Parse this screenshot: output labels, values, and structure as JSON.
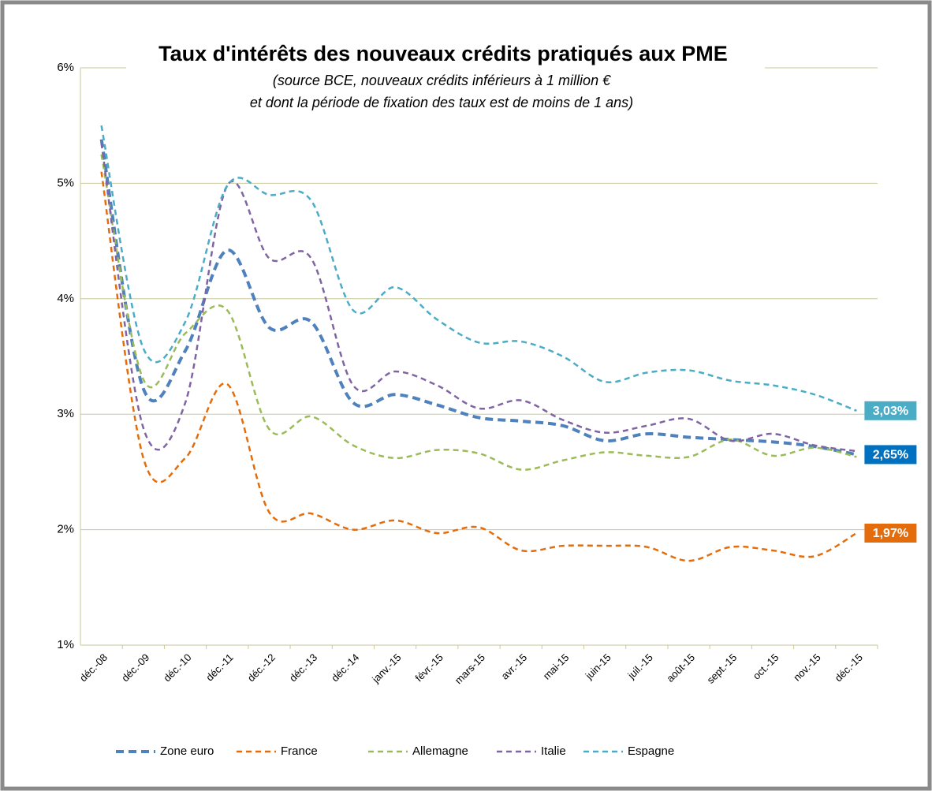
{
  "chart_data": {
    "type": "line",
    "title": "Taux d'intérêts des nouveaux crédits pratiqués aux PME",
    "subtitle": [
      "(source BCE, nouveaux crédits inférieurs à 1 million €",
      "et dont la période de fixation des taux est de moins de 1 ans)"
    ],
    "categories": [
      "déc.-08",
      "déc.-09",
      "déc.-10",
      "déc.-11",
      "déc.-12",
      "déc.-13",
      "déc.-14",
      "janv.-15",
      "févr.-15",
      "mars-15",
      "avr.-15",
      "mai-15",
      "juin-15",
      "juil.-15",
      "août-15",
      "sept.-15",
      "oct.-15",
      "nov.-15",
      "déc.-15"
    ],
    "ylim": [
      1,
      6
    ],
    "yticks": [
      {
        "value": 1,
        "label": "1%"
      },
      {
        "value": 2,
        "label": "2%"
      },
      {
        "value": 3,
        "label": "3%"
      },
      {
        "value": 4,
        "label": "4%"
      },
      {
        "value": 5,
        "label": "5%"
      },
      {
        "value": 6,
        "label": "6%"
      }
    ],
    "grid": true,
    "legend": "bottom",
    "series": [
      {
        "name": "Zone euro",
        "color": "#4f81bd",
        "values": [
          5.38,
          3.22,
          3.55,
          4.42,
          3.75,
          3.8,
          3.1,
          3.17,
          3.08,
          2.97,
          2.94,
          2.9,
          2.77,
          2.83,
          2.8,
          2.78,
          2.76,
          2.72,
          2.65
        ],
        "value_labels": [
          null,
          null,
          null,
          null,
          null,
          null,
          null,
          null,
          null,
          null,
          null,
          null,
          null,
          null,
          null,
          null,
          null,
          null,
          "2,65%"
        ],
        "label_color": "#0070c0"
      },
      {
        "name": "France",
        "color": "#e46c0a",
        "values": [
          5.1,
          2.62,
          2.62,
          3.26,
          2.15,
          2.14,
          2.0,
          2.08,
          1.97,
          2.02,
          1.82,
          1.86,
          1.86,
          1.85,
          1.73,
          1.85,
          1.82,
          1.77,
          1.97
        ],
        "value_labels": [
          null,
          null,
          null,
          null,
          null,
          null,
          null,
          null,
          null,
          null,
          null,
          null,
          null,
          null,
          null,
          null,
          null,
          null,
          "1,97%"
        ],
        "label_color": "#e46c0a"
      },
      {
        "name": "Allemagne",
        "color": "#9bbb59",
        "values": [
          5.25,
          3.3,
          3.7,
          3.9,
          2.87,
          2.98,
          2.73,
          2.62,
          2.69,
          2.66,
          2.52,
          2.6,
          2.67,
          2.64,
          2.63,
          2.78,
          2.64,
          2.71,
          2.63
        ]
      },
      {
        "name": "Italie",
        "color": "#8064a2",
        "values": [
          5.35,
          2.88,
          3.1,
          4.98,
          4.35,
          4.35,
          3.25,
          3.37,
          3.25,
          3.05,
          3.12,
          2.95,
          2.84,
          2.9,
          2.96,
          2.77,
          2.83,
          2.73,
          2.68
        ]
      },
      {
        "name": "Espagne",
        "color": "#4bacc6",
        "values": [
          5.5,
          3.57,
          3.8,
          4.98,
          4.9,
          4.85,
          3.9,
          4.1,
          3.82,
          3.62,
          3.63,
          3.5,
          3.28,
          3.36,
          3.38,
          3.29,
          3.25,
          3.17,
          3.03
        ],
        "value_labels": [
          null,
          null,
          null,
          null,
          null,
          null,
          null,
          null,
          null,
          null,
          null,
          null,
          null,
          null,
          null,
          null,
          null,
          null,
          "3,03%"
        ],
        "label_color": "#4bacc6"
      }
    ]
  }
}
